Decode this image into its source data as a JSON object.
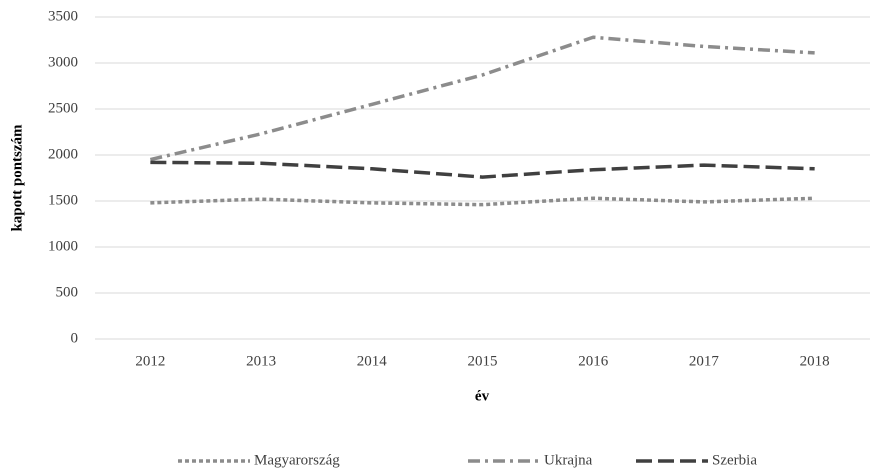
{
  "chart_data": {
    "type": "line",
    "x_label": "év",
    "y_label": "kapott pontszám",
    "categories": [
      "2012",
      "2013",
      "2014",
      "2015",
      "2016",
      "2017",
      "2018"
    ],
    "series": [
      {
        "name": "Magyarország",
        "color": "#8c8c8c",
        "dash": "dot",
        "values": [
          1480,
          1520,
          1480,
          1460,
          1530,
          1490,
          1530
        ]
      },
      {
        "name": "Ukrajna",
        "color": "#8c8c8c",
        "dash": "dashdot",
        "values": [
          1950,
          2230,
          2550,
          2870,
          3280,
          3180,
          3110
        ]
      },
      {
        "name": "Szerbia",
        "color": "#404040",
        "dash": "dash",
        "values": [
          1920,
          1910,
          1850,
          1760,
          1840,
          1890,
          1850
        ]
      }
    ],
    "ylim": [
      0,
      3500
    ],
    "yticks": [
      0,
      500,
      1000,
      1500,
      2000,
      2500,
      3000,
      3500
    ],
    "grid": true,
    "legend": "bottom"
  }
}
